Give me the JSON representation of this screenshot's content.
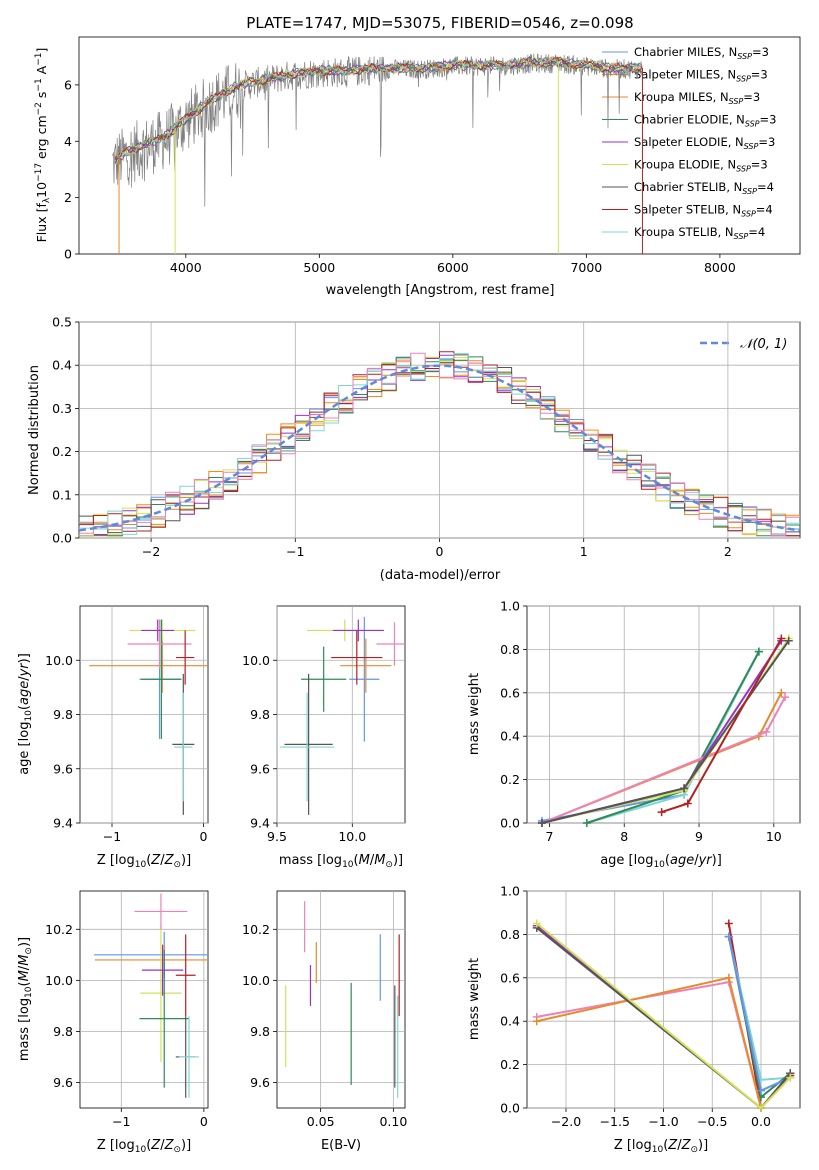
{
  "title": "PLATE=1747, MJD=53075, FIBERID=0546, z=0.098",
  "colors": {
    "chabrier_miles": "#6495ed",
    "salpeter_miles": "#ff8c00",
    "kroupa_miles": "#e8892b",
    "chabrier_elodie": "#2e8b57",
    "salpeter_elodie": "#9932cc",
    "kroupa_elodie": "#d4e157",
    "chabrier_stelib": "#555555",
    "salpeter_stelib": "#b22222",
    "kroupa_stelib": "#80d4d4",
    "pink": "#ee82b8"
  },
  "chart_data": [
    {
      "id": "spectrum",
      "type": "line",
      "xlabel": "wavelength [Angstrom, rest frame]",
      "ylabel": "Flux [fλ10^-17 erg cm^-2 s^-1 A^-1]",
      "ylabel_parts": {
        "a": "Flux [f",
        "b": "λ",
        "c": "10",
        "d": "−17",
        "e": " erg cm",
        "f": "−2",
        "g": " s",
        "h": "−1",
        "i": " A",
        "j": "−1",
        "k": "]"
      },
      "xlim": [
        3200,
        8600
      ],
      "ylim": [
        0,
        7.7
      ],
      "xticks": [
        4000,
        5000,
        6000,
        7000,
        8000
      ],
      "yticks": [
        0,
        2,
        4,
        6
      ],
      "legend": {
        "position": "top-right",
        "entries": [
          {
            "name": "Chabrier MILES, NSSP=3",
            "label": "Chabrier MILES, N",
            "sub": "SSP",
            "tail": "=3",
            "color": "#6495ed"
          },
          {
            "name": "Salpeter MILES, NSSP=3",
            "label": "Salpeter MILES, N",
            "sub": "SSP",
            "tail": "=3",
            "color": "#ff8c00"
          },
          {
            "name": "Kroupa MILES, NSSP=3",
            "label": "Kroupa MILES, N",
            "sub": "SSP",
            "tail": "=3",
            "color": "#e8892b"
          },
          {
            "name": "Chabrier ELODIE, NSSP=3",
            "label": "Chabrier ELODIE, N",
            "sub": "SSP",
            "tail": "=3",
            "color": "#2e8b57"
          },
          {
            "name": "Salpeter ELODIE, NSSP=3",
            "label": "Salpeter ELODIE, N",
            "sub": "SSP",
            "tail": "=3",
            "color": "#9932cc"
          },
          {
            "name": "Kroupa ELODIE, NSSP=3",
            "label": "Kroupa ELODIE, N",
            "sub": "SSP",
            "tail": "=3",
            "color": "#d4e157"
          },
          {
            "name": "Chabrier STELIB, NSSP=4",
            "label": "Chabrier STELIB, N",
            "sub": "SSP",
            "tail": "=4",
            "color": "#555555"
          },
          {
            "name": "Salpeter STELIB, NSSP=4",
            "label": "Salpeter STELIB, N",
            "sub": "SSP",
            "tail": "=4",
            "color": "#b22222"
          },
          {
            "name": "Kroupa STELIB, NSSP=4",
            "label": "Kroupa STELIB, N",
            "sub": "SSP",
            "tail": "=4",
            "color": "#80d4d4"
          }
        ]
      },
      "data_envelope": {
        "x": [
          3450,
          3550,
          3700,
          3850,
          4000,
          4200,
          4400,
          4600,
          4800,
          5000,
          5200,
          5400,
          5600,
          5800,
          6000,
          6200,
          6400,
          6600,
          6800,
          7000,
          7200,
          7400
        ],
        "y": [
          3.3,
          3.6,
          3.9,
          4.2,
          4.8,
          5.5,
          6.0,
          6.2,
          6.4,
          6.5,
          6.5,
          6.6,
          6.6,
          6.6,
          6.7,
          6.7,
          6.7,
          6.8,
          6.8,
          6.7,
          6.6,
          6.6
        ]
      }
    },
    {
      "id": "residuals",
      "type": "line",
      "xlabel": "(data-model)/error",
      "ylabel": "Normed distribution",
      "xlim": [
        -2.5,
        2.5
      ],
      "ylim": [
        0,
        0.5
      ],
      "xticks": [
        -2,
        -1,
        0,
        1,
        2
      ],
      "yticks": [
        0.0,
        0.1,
        0.2,
        0.3,
        0.4,
        0.5
      ],
      "grid": true,
      "legend": {
        "position": "top-right",
        "entries": [
          {
            "name": "N(0,1)",
            "label": "𝒩(0, 1)",
            "color": "#5b8bd9"
          }
        ]
      },
      "normal_curve": {
        "mu": 0,
        "sigma": 1
      },
      "bin_width": 0.1
    },
    {
      "id": "age_vs_Z",
      "type": "scatter",
      "xlabel": "Z [log10(Z/Z⊙)]",
      "ylabel": "age [log10(age/yr)]",
      "xlim": [
        -1.35,
        0.05
      ],
      "ylim": [
        9.4,
        10.2
      ],
      "xticks": [
        -1,
        0
      ],
      "yticks": [
        9.4,
        9.6,
        9.8,
        10.0
      ],
      "grid": true,
      "points": [
        {
          "x": -0.48,
          "y": 9.93,
          "xerr": 0.22,
          "yerr": 0.22,
          "color": "#6495ed"
        },
        {
          "x": -0.45,
          "y": 9.98,
          "xerr": 0.8,
          "yerr": 0.1,
          "color": "#e8892b"
        },
        {
          "x": -0.45,
          "y": 10.11,
          "xerr": 0.36,
          "yerr": 0.04,
          "color": "#d4e157"
        },
        {
          "x": -0.46,
          "y": 9.93,
          "xerr": 0.22,
          "yerr": 0.22,
          "color": "#2e8b57"
        },
        {
          "x": -0.48,
          "y": 10.06,
          "xerr": 0.35,
          "yerr": 0.09,
          "color": "#ee82b8"
        },
        {
          "x": -0.5,
          "y": 10.11,
          "xerr": 0.18,
          "yerr": 0.04,
          "color": "#9932cc"
        },
        {
          "x": -0.2,
          "y": 10.01,
          "xerr": 0.1,
          "yerr": 0.1,
          "color": "#b22222"
        },
        {
          "x": -0.22,
          "y": 9.69,
          "xerr": 0.12,
          "yerr": 0.26,
          "color": "#555555"
        },
        {
          "x": -0.22,
          "y": 9.68,
          "xerr": 0.1,
          "yerr": 0.2,
          "color": "#80d4d4"
        }
      ]
    },
    {
      "id": "age_vs_mass",
      "type": "scatter",
      "xlabel": "mass [log10(M/M⊙)]",
      "ylabel": "",
      "xlim": [
        9.5,
        10.35
      ],
      "ylim": [
        9.4,
        10.2
      ],
      "xticks": [
        9.5,
        10.0
      ],
      "yticks": [
        9.4,
        9.6,
        9.8,
        10.0
      ],
      "grid": true,
      "points": [
        {
          "x": 10.08,
          "y": 9.93,
          "xerr": 0.1,
          "yerr": 0.23,
          "color": "#6495ed"
        },
        {
          "x": 10.09,
          "y": 9.98,
          "xerr": 0.17,
          "yerr": 0.1,
          "color": "#e8892b"
        },
        {
          "x": 9.95,
          "y": 10.11,
          "xerr": 0.25,
          "yerr": 0.04,
          "color": "#d4e157"
        },
        {
          "x": 9.81,
          "y": 9.93,
          "xerr": 0.15,
          "yerr": 0.12,
          "color": "#2e8b57"
        },
        {
          "x": 10.28,
          "y": 10.06,
          "xerr": 0.12,
          "yerr": 0.08,
          "color": "#ee82b8"
        },
        {
          "x": 10.04,
          "y": 10.11,
          "xerr": 0.17,
          "yerr": 0.04,
          "color": "#9932cc"
        },
        {
          "x": 10.03,
          "y": 10.01,
          "xerr": 0.17,
          "yerr": 0.1,
          "color": "#b22222"
        },
        {
          "x": 9.71,
          "y": 9.69,
          "xerr": 0.16,
          "yerr": 0.26,
          "color": "#555555"
        },
        {
          "x": 9.7,
          "y": 9.68,
          "xerr": 0.18,
          "yerr": 0.2,
          "color": "#80d4d4"
        }
      ]
    },
    {
      "id": "weight_vs_age",
      "type": "line",
      "xlabel": "age [log10(age/yr)]",
      "ylabel": "mass weight",
      "xlim": [
        6.7,
        10.35
      ],
      "ylim": [
        0,
        1
      ],
      "xticks": [
        7,
        8,
        9,
        10
      ],
      "yticks": [
        0.0,
        0.2,
        0.4,
        0.6,
        0.8,
        1.0
      ],
      "grid": true,
      "series": [
        {
          "color": "#6495ed",
          "x": [
            6.9,
            8.8,
            9.8
          ],
          "y": [
            0.01,
            0.13,
            0.79
          ]
        },
        {
          "color": "#80d4d4",
          "x": [
            7.5,
            8.8,
            9.8
          ],
          "y": [
            0.0,
            0.13,
            0.79
          ]
        },
        {
          "color": "#2e8b57",
          "x": [
            7.5,
            8.8,
            9.8
          ],
          "y": [
            0.0,
            0.15,
            0.79
          ]
        },
        {
          "color": "#e8892b",
          "x": [
            6.9,
            9.8,
            10.1
          ],
          "y": [
            0.0,
            0.4,
            0.6
          ]
        },
        {
          "color": "#ee82b8",
          "x": [
            6.9,
            9.9,
            10.15
          ],
          "y": [
            0.0,
            0.42,
            0.58
          ]
        },
        {
          "color": "#d4e157",
          "x": [
            6.9,
            8.8,
            10.2
          ],
          "y": [
            0.0,
            0.15,
            0.85
          ]
        },
        {
          "color": "#9932cc",
          "x": [
            6.9,
            8.8,
            10.1
          ],
          "y": [
            0.0,
            0.16,
            0.84
          ]
        },
        {
          "color": "#555555",
          "x": [
            6.9,
            8.8,
            10.2
          ],
          "y": [
            0.0,
            0.16,
            0.84
          ]
        },
        {
          "color": "#b22222",
          "x": [
            8.5,
            8.85,
            10.1
          ],
          "y": [
            0.05,
            0.09,
            0.85
          ]
        }
      ]
    },
    {
      "id": "mass_vs_Z",
      "type": "scatter",
      "xlabel": "Z [log10(Z/Z⊙)]",
      "ylabel": "mass [log10(M/M⊙)]",
      "xlim": [
        -1.5,
        0.05
      ],
      "ylim": [
        9.5,
        10.35
      ],
      "xticks": [
        -1,
        0
      ],
      "yticks": [
        9.6,
        9.8,
        10.0,
        10.2
      ],
      "grid": true,
      "points": [
        {
          "x": -0.48,
          "y": 10.1,
          "xerr": 0.85,
          "yerr": 0.09,
          "color": "#6495ed"
        },
        {
          "x": -0.48,
          "y": 10.08,
          "xerr": 0.84,
          "yerr": 0.06,
          "color": "#e8892b"
        },
        {
          "x": -0.52,
          "y": 9.95,
          "xerr": 0.25,
          "yerr": 0.27,
          "color": "#d4e157"
        },
        {
          "x": -0.48,
          "y": 9.85,
          "xerr": 0.3,
          "yerr": 0.27,
          "color": "#2e8b57"
        },
        {
          "x": -0.52,
          "y": 10.27,
          "xerr": 0.32,
          "yerr": 0.07,
          "color": "#ee82b8"
        },
        {
          "x": -0.5,
          "y": 10.04,
          "xerr": 0.25,
          "yerr": 0.1,
          "color": "#9932cc"
        },
        {
          "x": -0.22,
          "y": 10.02,
          "xerr": 0.12,
          "yerr": 0.16,
          "color": "#b22222"
        },
        {
          "x": -0.22,
          "y": 9.7,
          "xerr": 0.12,
          "yerr": 0.16,
          "color": "#555555"
        },
        {
          "x": -0.18,
          "y": 9.7,
          "xerr": 0.12,
          "yerr": 0.16,
          "color": "#80d4d4"
        }
      ]
    },
    {
      "id": "mass_vs_ebv",
      "type": "scatter",
      "xlabel": "E(B-V)",
      "ylabel": "",
      "xlim": [
        0.02,
        0.108
      ],
      "ylim": [
        9.5,
        10.35
      ],
      "xticks": [
        0.05,
        0.1
      ],
      "xticklabels": [
        "0.05",
        "0.10"
      ],
      "yticks": [
        9.6,
        9.8,
        10.0,
        10.2
      ],
      "grid": true,
      "points": [
        {
          "x": 0.091,
          "y": 10.05,
          "yerr": 0.13,
          "color": "#6495ed"
        },
        {
          "x": 0.047,
          "y": 10.07,
          "yerr": 0.08,
          "color": "#e8892b"
        },
        {
          "x": 0.026,
          "y": 9.82,
          "yerr": 0.16,
          "color": "#d4e157"
        },
        {
          "x": 0.071,
          "y": 9.79,
          "yerr": 0.2,
          "color": "#2e8b57"
        },
        {
          "x": 0.039,
          "y": 10.21,
          "yerr": 0.1,
          "color": "#ee82b8"
        },
        {
          "x": 0.043,
          "y": 9.98,
          "yerr": 0.08,
          "color": "#9932cc"
        },
        {
          "x": 0.104,
          "y": 10.02,
          "yerr": 0.16,
          "color": "#b22222"
        },
        {
          "x": 0.101,
          "y": 9.78,
          "yerr": 0.2,
          "color": "#555555"
        },
        {
          "x": 0.103,
          "y": 9.74,
          "yerr": 0.2,
          "color": "#80d4d4"
        }
      ]
    },
    {
      "id": "weight_vs_Z",
      "type": "line",
      "xlabel": "Z [log10(Z/Z⊙)]",
      "ylabel": "mass weight",
      "xlim": [
        -2.4,
        0.4
      ],
      "ylim": [
        0,
        1
      ],
      "xticks": [
        -2.0,
        -1.5,
        -1.0,
        -0.5,
        0.0
      ],
      "xticklabels": [
        "−2.0",
        "−1.5",
        "−1.0",
        "−0.5",
        "0.0"
      ],
      "yticks": [
        0.0,
        0.2,
        0.4,
        0.6,
        0.8,
        1.0
      ],
      "grid": true,
      "series": [
        {
          "color": "#b22222",
          "x": [
            -0.33,
            0.0,
            0.3
          ],
          "y": [
            0.85,
            0.0,
            0.15
          ]
        },
        {
          "color": "#80d4d4",
          "x": [
            -0.33,
            0.0,
            0.3
          ],
          "y": [
            0.79,
            0.13,
            0.14
          ]
        },
        {
          "color": "#2e8b57",
          "x": [
            -0.33,
            0.0,
            0.3
          ],
          "y": [
            0.79,
            0.05,
            0.16
          ]
        },
        {
          "color": "#6495ed",
          "x": [
            -0.33,
            0.0,
            0.3
          ],
          "y": [
            0.79,
            0.08,
            0.14
          ]
        },
        {
          "color": "#ee82b8",
          "x": [
            -2.3,
            -0.33,
            0.0
          ],
          "y": [
            0.42,
            0.58,
            0.0
          ]
        },
        {
          "color": "#e8892b",
          "x": [
            -2.3,
            -0.33,
            0.0
          ],
          "y": [
            0.4,
            0.6,
            0.0
          ]
        },
        {
          "color": "#9932cc",
          "x": [
            -2.3,
            0.0,
            0.3
          ],
          "y": [
            0.84,
            0.0,
            0.16
          ]
        },
        {
          "color": "#555555",
          "x": [
            -2.3,
            0.0,
            0.3
          ],
          "y": [
            0.83,
            0.0,
            0.16
          ]
        },
        {
          "color": "#d4e157",
          "x": [
            -2.3,
            0.0,
            0.3
          ],
          "y": [
            0.85,
            0.0,
            0.14
          ]
        }
      ]
    }
  ]
}
